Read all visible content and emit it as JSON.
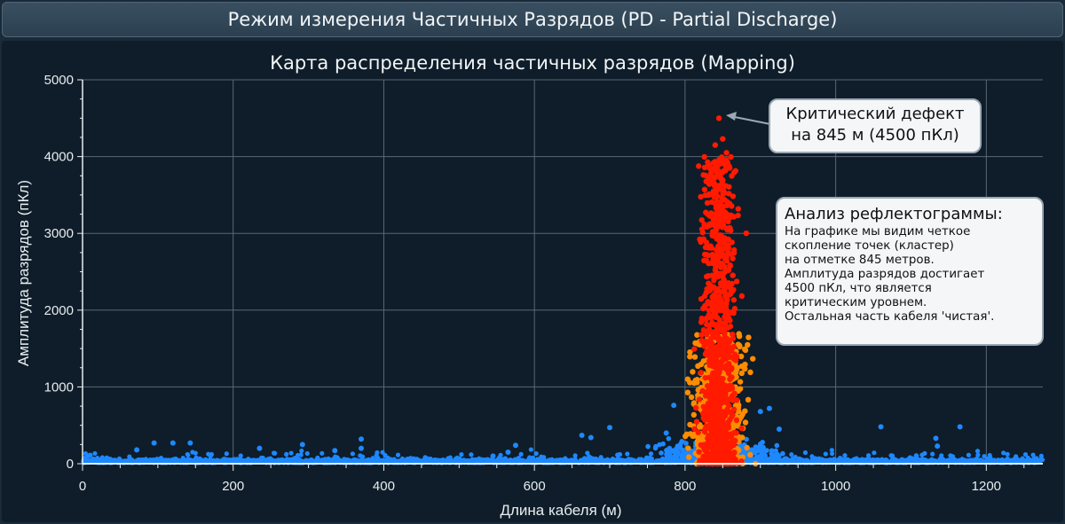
{
  "header": {
    "title": "Режим измерения Частичных Разрядов (PD - Partial Discharge)"
  },
  "colors": {
    "background": "#0e1d29",
    "header": "#2b3f4f",
    "noise": "#1e88ff",
    "medium": "#ff8c00",
    "critical": "#ff1a00",
    "grid": "#5a6873"
  },
  "chart_data": {
    "type": "scatter",
    "title": "Карта распределения частичных разрядов (Mapping)",
    "xlabel": "Длина кабеля (м)",
    "ylabel": "Амплитуда разрядов (пКл)",
    "xlim": [
      0,
      1275
    ],
    "ylim": [
      0,
      5000
    ],
    "xticks": [
      "0",
      "200",
      "400",
      "600",
      "800",
      "1000",
      "1200"
    ],
    "yticks": [
      "0",
      "1000",
      "2000",
      "3000",
      "4000",
      "5000"
    ],
    "grid": true,
    "series": [
      {
        "color": "#1e88ff",
        "description_points": [
          [
            10,
            110
          ],
          [
            72,
            180
          ],
          [
            95,
            270
          ],
          [
            120,
            270
          ],
          [
            143,
            270
          ],
          [
            170,
            110
          ],
          [
            235,
            200
          ],
          [
            292,
            250
          ],
          [
            335,
            170
          ],
          [
            370,
            320
          ],
          [
            370,
            200
          ],
          [
            545,
            100
          ],
          [
            565,
            150
          ],
          [
            575,
            240
          ],
          [
            663,
            370
          ],
          [
            675,
            340
          ],
          [
            700,
            470
          ],
          [
            775,
            400
          ],
          [
            785,
            760
          ],
          [
            900,
            680
          ],
          [
            912,
            720
          ],
          [
            925,
            450
          ],
          [
            1060,
            480
          ],
          [
            1133,
            330
          ],
          [
            1135,
            230
          ],
          [
            1165,
            480
          ]
        ]
      },
      {
        "color": "#ff8c00",
        "cluster_center": 845,
        "cluster_amplitude_max": 1650
      },
      {
        "color": "#ff1a00",
        "cluster_center": 845,
        "cluster_amplitude_max": 4500,
        "points": [
          [
            845,
            4500
          ],
          [
            850,
            4230
          ],
          [
            840,
            4150
          ],
          [
            855,
            4050
          ]
        ]
      }
    ],
    "annotations": [
      {
        "text": "Критический дефект на 845 м (4500 пКл)",
        "x": 845,
        "y": 4500,
        "lines": [
          "Критический дефект",
          "на 845 м (4500 пКл)"
        ]
      },
      {
        "title": "Анализ рефлектограммы:",
        "lines": [
          "На графике мы видим четкое",
          "скопление точек (кластер)",
          "на отметке 845 метров.",
          "Амплитуда разрядов достигает",
          "4500 пКл, что является",
          "критическим уровнем.",
          "Остальная часть кабеля 'чистая'."
        ]
      }
    ]
  }
}
